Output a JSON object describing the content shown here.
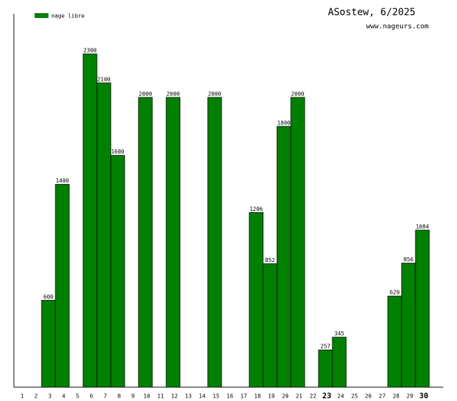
{
  "chart_data": {
    "type": "bar",
    "title": "ASostew, 6/2025",
    "subtitle": "www.nageurs.com",
    "categories": [
      "1",
      "2",
      "3",
      "4",
      "5",
      "6",
      "7",
      "8",
      "9",
      "10",
      "11",
      "12",
      "13",
      "14",
      "15",
      "16",
      "17",
      "18",
      "19",
      "20",
      "21",
      "22",
      "23",
      "24",
      "25",
      "26",
      "27",
      "28",
      "29",
      "30"
    ],
    "highlighted_categories": [
      "23",
      "30"
    ],
    "series": [
      {
        "name": "nage libre",
        "color": "#008000",
        "values": [
          null,
          null,
          600,
          1400,
          null,
          2300,
          2100,
          1600,
          null,
          2000,
          null,
          2000,
          null,
          null,
          2000,
          null,
          null,
          1206,
          852,
          1800,
          2000,
          null,
          257,
          345,
          null,
          null,
          null,
          629,
          856,
          1084
        ]
      }
    ]
  }
}
